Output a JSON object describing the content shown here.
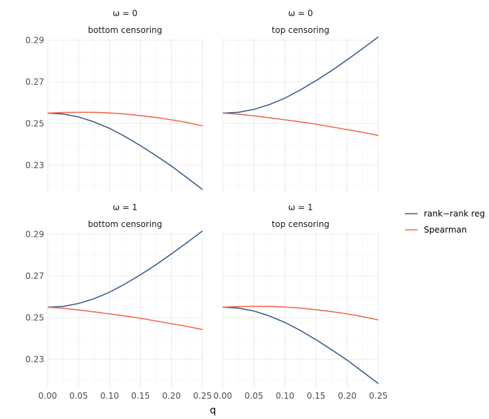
{
  "chart_data": {
    "type": "line",
    "xlabel": "q",
    "ylabel": "",
    "xlim": [
      0,
      0.25
    ],
    "ylim": [
      0.2165,
      0.2908
    ],
    "x_ticks": [
      "0.00",
      "0.05",
      "0.10",
      "0.15",
      "0.20",
      "0.25"
    ],
    "y_ticks": [
      "0.23",
      "0.25",
      "0.27",
      "0.29"
    ],
    "grid": true,
    "legend_position": "right",
    "legend": [
      {
        "name": "rank−rank reg",
        "color": "#3b5e8c"
      },
      {
        "name": "Spearman",
        "color": "#ef6a4c"
      }
    ],
    "x": [
      0,
      0.025,
      0.05,
      0.075,
      0.1,
      0.125,
      0.15,
      0.175,
      0.2,
      0.225,
      0.25
    ],
    "panels": [
      {
        "strip_top": "ω = 0",
        "strip_bottom": "bottom censoring",
        "series": [
          {
            "name": "rank−rank reg",
            "values": [
              0.255,
              0.2546,
              0.2532,
              0.2508,
              0.2477,
              0.2438,
              0.2394,
              0.2346,
              0.2296,
              0.224,
              0.2184
            ]
          },
          {
            "name": "Spearman",
            "values": [
              0.255,
              0.2553,
              0.2554,
              0.2554,
              0.2551,
              0.2546,
              0.2538,
              0.2529,
              0.2518,
              0.2505,
              0.2489
            ]
          }
        ]
      },
      {
        "strip_top": "ω = 0",
        "strip_bottom": "top censoring",
        "series": [
          {
            "name": "rank−rank reg",
            "values": [
              0.255,
              0.2554,
              0.2568,
              0.2591,
              0.2622,
              0.2662,
              0.2706,
              0.2754,
              0.2806,
              0.286,
              0.2916
            ]
          },
          {
            "name": "Spearman",
            "values": [
              0.255,
              0.2545,
              0.2537,
              0.2528,
              0.2518,
              0.2508,
              0.2497,
              0.2484,
              0.2471,
              0.2458,
              0.2443
            ]
          }
        ]
      },
      {
        "strip_top": "ω = 1",
        "strip_bottom": "bottom censoring",
        "series": [
          {
            "name": "rank−rank reg",
            "values": [
              0.255,
              0.2554,
              0.2568,
              0.2591,
              0.2622,
              0.2662,
              0.2706,
              0.2754,
              0.2806,
              0.286,
              0.2916
            ]
          },
          {
            "name": "Spearman",
            "values": [
              0.255,
              0.2545,
              0.2537,
              0.2528,
              0.2518,
              0.2508,
              0.2497,
              0.2484,
              0.2471,
              0.2458,
              0.2443
            ]
          }
        ]
      },
      {
        "strip_top": "ω = 1",
        "strip_bottom": "top censoring",
        "series": [
          {
            "name": "rank−rank reg",
            "values": [
              0.255,
              0.2546,
              0.2532,
              0.2508,
              0.2477,
              0.2438,
              0.2394,
              0.2346,
              0.2296,
              0.224,
              0.2184
            ]
          },
          {
            "name": "Spearman",
            "values": [
              0.255,
              0.2553,
              0.2554,
              0.2554,
              0.2551,
              0.2546,
              0.2538,
              0.2529,
              0.2518,
              0.2505,
              0.2489
            ]
          }
        ]
      }
    ]
  }
}
